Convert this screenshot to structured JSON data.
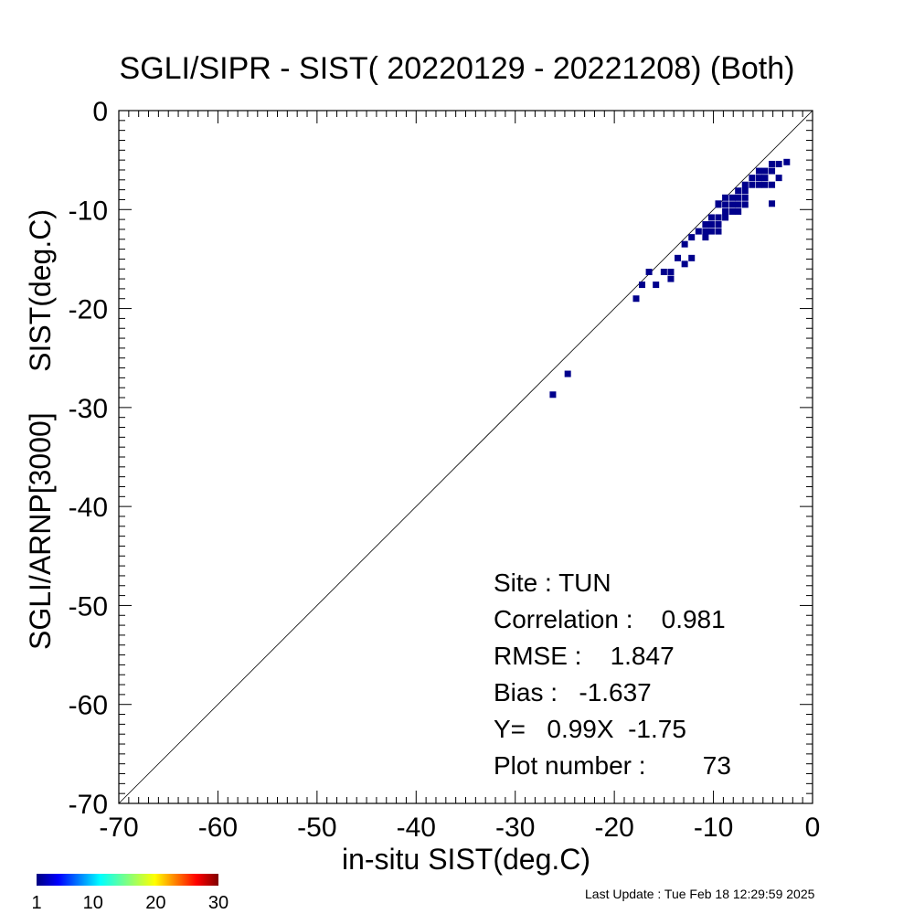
{
  "chart_data": {
    "type": "scatter",
    "title": "SGLI/SIPR - SIST( 20220129 - 20221208) (Both)",
    "xlabel": "in-situ SIST(deg.C)",
    "ylabel": "SGLI/ARNP[3000]     SIST(deg.C)",
    "xlim": [
      -70,
      0
    ],
    "ylim": [
      -70,
      0
    ],
    "x_ticks": [
      "-70",
      "-60",
      "-50",
      "-40",
      "-30",
      "-20",
      "-10",
      "0"
    ],
    "y_ticks": [
      "-70",
      "-60",
      "-50",
      "-40",
      "-30",
      "-20",
      "-10",
      "0"
    ],
    "reference_line": "1:1",
    "grid": false,
    "point_color": "#00008c",
    "points": [
      [
        -26.2,
        -28.7
      ],
      [
        -24.7,
        -26.6
      ],
      [
        -17.8,
        -19.0
      ],
      [
        -17.2,
        -17.6
      ],
      [
        -16.5,
        -16.3
      ],
      [
        -15.8,
        -17.6
      ],
      [
        -15.0,
        -16.3
      ],
      [
        -14.3,
        -16.3
      ],
      [
        -14.3,
        -17.0
      ],
      [
        -13.6,
        -14.9
      ],
      [
        -12.9,
        -15.5
      ],
      [
        -12.9,
        -13.5
      ],
      [
        -12.2,
        -14.9
      ],
      [
        -12.2,
        -12.8
      ],
      [
        -11.5,
        -12.2
      ],
      [
        -10.8,
        -12.8
      ],
      [
        -10.8,
        -12.2
      ],
      [
        -10.8,
        -11.5
      ],
      [
        -10.2,
        -12.2
      ],
      [
        -10.2,
        -11.5
      ],
      [
        -10.2,
        -10.8
      ],
      [
        -9.5,
        -12.2
      ],
      [
        -9.5,
        -11.5
      ],
      [
        -9.5,
        -10.8
      ],
      [
        -9.5,
        -9.5
      ],
      [
        -9.5,
        -9.4
      ],
      [
        -8.8,
        -10.8
      ],
      [
        -8.8,
        -10.2
      ],
      [
        -8.8,
        -9.5
      ],
      [
        -8.8,
        -8.8
      ],
      [
        -8.1,
        -10.2
      ],
      [
        -8.1,
        -9.5
      ],
      [
        -8.1,
        -8.8
      ],
      [
        -7.5,
        -10.2
      ],
      [
        -7.5,
        -9.5
      ],
      [
        -7.5,
        -8.8
      ],
      [
        -7.5,
        -8.1
      ],
      [
        -6.8,
        -9.5
      ],
      [
        -6.8,
        -8.8
      ],
      [
        -6.8,
        -8.1
      ],
      [
        -6.8,
        -7.5
      ],
      [
        -6.1,
        -7.5
      ],
      [
        -6.1,
        -6.8
      ],
      [
        -5.4,
        -7.5
      ],
      [
        -5.4,
        -6.8
      ],
      [
        -5.4,
        -6.1
      ],
      [
        -4.8,
        -7.5
      ],
      [
        -4.8,
        -6.8
      ],
      [
        -4.8,
        -6.1
      ],
      [
        -4.1,
        -7.5
      ],
      [
        -4.1,
        -6.1
      ],
      [
        -4.1,
        -5.4
      ],
      [
        -4.1,
        -9.4
      ],
      [
        -3.4,
        -6.8
      ],
      [
        -3.4,
        -5.4
      ],
      [
        -2.6,
        -5.2
      ]
    ],
    "colorbar": {
      "min": 1,
      "max": 30,
      "tick_labels": [
        "1",
        "10",
        "20",
        "30"
      ]
    }
  },
  "stats": {
    "site": "Site : TUN",
    "correlation": "Correlation :    0.981",
    "rmse": "RMSE :    1.847",
    "bias": "Bias :   -1.637",
    "regression": "Y=   0.99X  -1.75",
    "plot_number": "Plot number :        73"
  },
  "footer": {
    "last_update": "Last Update : Tue Feb 18 12:29:59 2025"
  }
}
